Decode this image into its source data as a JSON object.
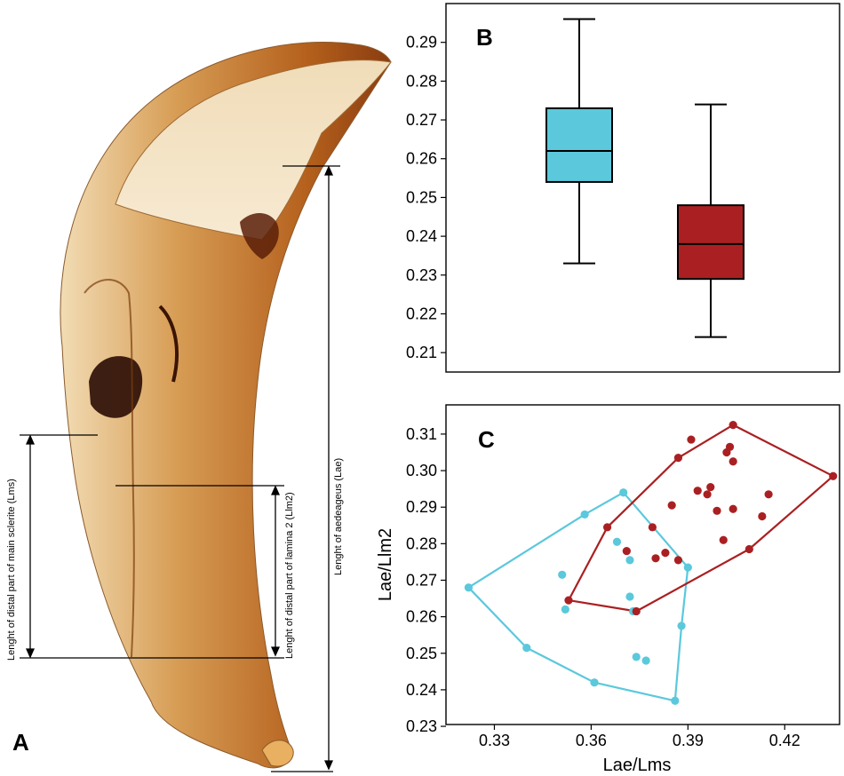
{
  "panel_a": {
    "label": "A",
    "measurements": {
      "lae": "Lenght of aedeageus (Lae)",
      "lms": "Lenght of distal part of main sclerite (Lms)",
      "llm2": "Lenght of distal part of lamina 2 (Llm2)"
    }
  },
  "chart_data": [
    {
      "panel": "B",
      "type": "box",
      "ylim": [
        0.205,
        0.3
      ],
      "yticks": [
        0.21,
        0.22,
        0.23,
        0.24,
        0.25,
        0.26,
        0.27,
        0.28,
        0.29
      ],
      "ytick_labels": [
        "0.21",
        "0.22",
        "0.23",
        "0.24",
        "0.25",
        "0.26",
        "0.27",
        "0.28",
        "0.29"
      ],
      "boxes": [
        {
          "color": "#5bc8dc",
          "min": 0.233,
          "q1": 0.254,
          "median": 0.262,
          "q3": 0.273,
          "max": 0.296
        },
        {
          "color": "#aa2022",
          "min": 0.214,
          "q1": 0.229,
          "median": 0.238,
          "q3": 0.248,
          "max": 0.274
        }
      ],
      "grid": false
    },
    {
      "panel": "C",
      "type": "scatter",
      "xlabel": "Lae/Lms",
      "ylabel": "Lae/Llm2",
      "xlim": [
        0.315,
        0.437
      ],
      "ylim": [
        0.2305,
        0.318
      ],
      "xticks": [
        0.33,
        0.36,
        0.39,
        0.42
      ],
      "xtick_labels": [
        "0.33",
        "0.36",
        "0.39",
        "0.42"
      ],
      "yticks": [
        0.23,
        0.24,
        0.25,
        0.26,
        0.27,
        0.28,
        0.29,
        0.3,
        0.31
      ],
      "ytick_labels": [
        "0.23",
        "0.24",
        "0.25",
        "0.26",
        "0.27",
        "0.28",
        "0.29",
        "0.30",
        "0.31"
      ],
      "grid": false,
      "series": [
        {
          "color": "#5bc8dc",
          "points": [
            [
              0.322,
              0.268
            ],
            [
              0.34,
              0.2515
            ],
            [
              0.352,
              0.262
            ],
            [
              0.351,
              0.2715
            ],
            [
              0.358,
              0.288
            ],
            [
              0.361,
              0.242
            ],
            [
              0.368,
              0.2805
            ],
            [
              0.37,
              0.294
            ],
            [
              0.372,
              0.2755
            ],
            [
              0.372,
              0.2655
            ],
            [
              0.373,
              0.2615
            ],
            [
              0.374,
              0.249
            ],
            [
              0.377,
              0.248
            ],
            [
              0.386,
              0.237
            ],
            [
              0.388,
              0.2575
            ],
            [
              0.39,
              0.2735
            ]
          ],
          "hull": [
            [
              0.322,
              0.268
            ],
            [
              0.358,
              0.288
            ],
            [
              0.37,
              0.294
            ],
            [
              0.39,
              0.2735
            ],
            [
              0.388,
              0.2575
            ],
            [
              0.386,
              0.237
            ],
            [
              0.361,
              0.242
            ],
            [
              0.34,
              0.2515
            ]
          ]
        },
        {
          "color": "#aa2022",
          "points": [
            [
              0.353,
              0.2645
            ],
            [
              0.365,
              0.2845
            ],
            [
              0.371,
              0.278
            ],
            [
              0.374,
              0.2615
            ],
            [
              0.379,
              0.2845
            ],
            [
              0.38,
              0.276
            ],
            [
              0.383,
              0.2775
            ],
            [
              0.385,
              0.2905
            ],
            [
              0.387,
              0.2755
            ],
            [
              0.387,
              0.3035
            ],
            [
              0.391,
              0.3085
            ],
            [
              0.393,
              0.2945
            ],
            [
              0.396,
              0.2935
            ],
            [
              0.397,
              0.2955
            ],
            [
              0.399,
              0.289
            ],
            [
              0.401,
              0.281
            ],
            [
              0.402,
              0.305
            ],
            [
              0.403,
              0.3065
            ],
            [
              0.404,
              0.2895
            ],
            [
              0.404,
              0.3025
            ],
            [
              0.404,
              0.3125
            ],
            [
              0.409,
              0.2785
            ],
            [
              0.413,
              0.2875
            ],
            [
              0.415,
              0.2935
            ],
            [
              0.435,
              0.2985
            ]
          ],
          "hull": [
            [
              0.353,
              0.2645
            ],
            [
              0.365,
              0.2845
            ],
            [
              0.387,
              0.3035
            ],
            [
              0.404,
              0.3125
            ],
            [
              0.435,
              0.2985
            ],
            [
              0.409,
              0.2785
            ],
            [
              0.374,
              0.2615
            ]
          ]
        }
      ]
    }
  ],
  "panel_labels": {
    "b": "B",
    "c": "C"
  }
}
